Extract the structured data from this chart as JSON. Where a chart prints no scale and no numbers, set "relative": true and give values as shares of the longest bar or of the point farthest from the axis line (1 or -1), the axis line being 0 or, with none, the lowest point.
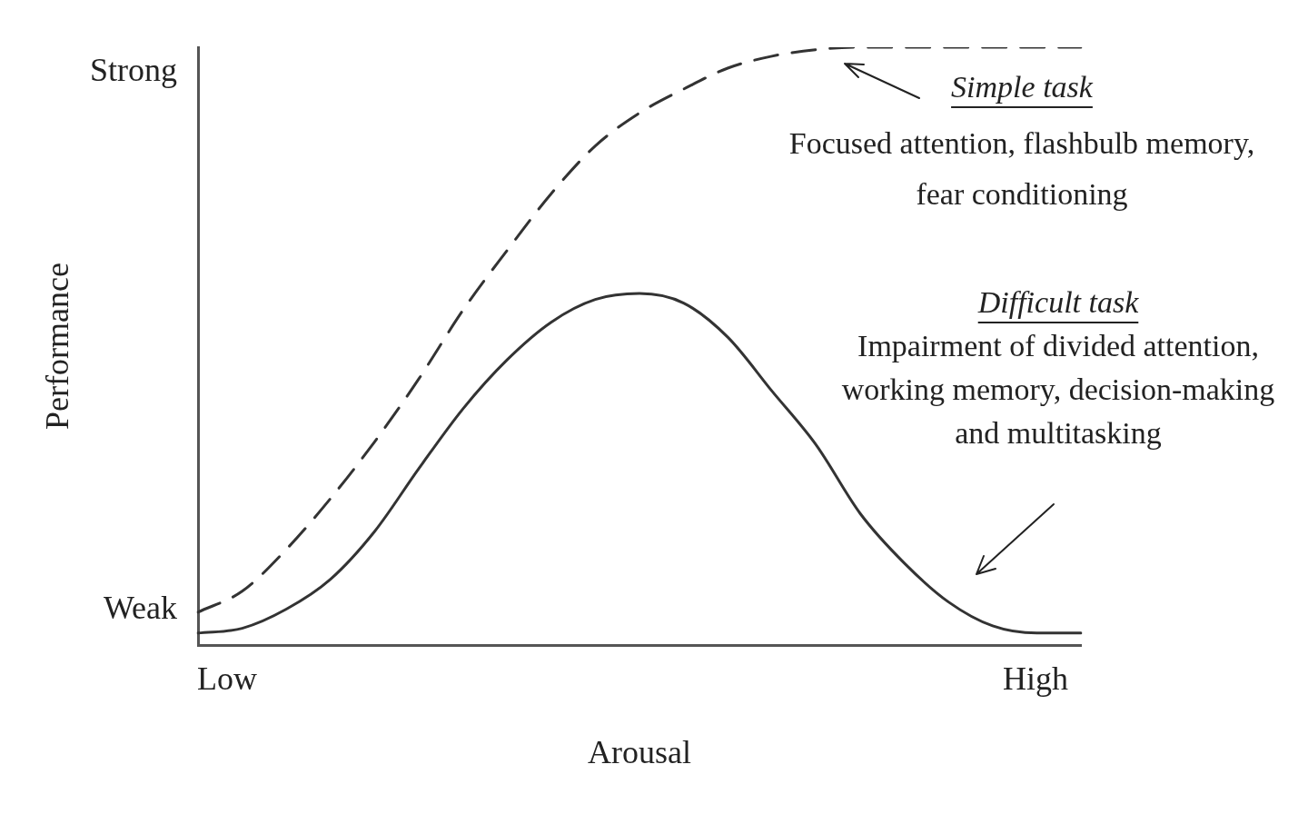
{
  "chart_data": {
    "type": "line",
    "xlabel": "Arousal",
    "ylabel": "Performance",
    "relative": true,
    "marker": "none",
    "categories": [
      null,
      null,
      null,
      null,
      null,
      null,
      null,
      null,
      null,
      null,
      null,
      null,
      null,
      null,
      null,
      null,
      null,
      null,
      null,
      null,
      null
    ],
    "series": [
      {
        "color": "#333333",
        "line_style": "dashed",
        "values": [
          0.055,
          0.09,
          0.16,
          0.245,
          0.34,
          0.445,
          0.56,
          0.66,
          0.755,
          0.835,
          0.89,
          0.93,
          0.965,
          0.985,
          0.996,
          1,
          1,
          1,
          1,
          1,
          1
        ]
      },
      {
        "color": "#333333",
        "line_style": "solid",
        "values": [
          0.02,
          0.028,
          0.06,
          0.11,
          0.19,
          0.295,
          0.395,
          0.477,
          0.54,
          0.578,
          0.588,
          0.572,
          0.515,
          0.425,
          0.335,
          0.22,
          0.137,
          0.072,
          0.032,
          0.02,
          0.02
        ]
      }
    ],
    "annotations": [
      "Strong",
      "Weak",
      "Low",
      "High",
      "Simple task",
      "Focused attention, flashbulb memory, fear conditioning",
      "Difficult task",
      "Impairment of divided attention, working memory, decision-making and multitasking"
    ]
  }
}
